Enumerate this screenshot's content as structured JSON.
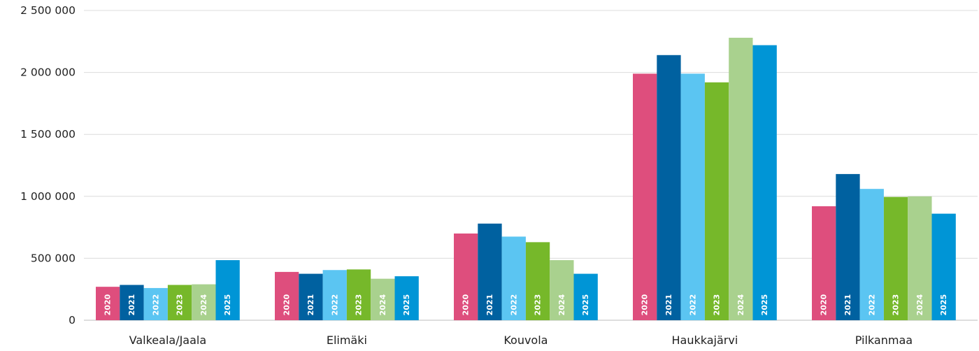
{
  "chart_data": {
    "type": "bar",
    "categories": [
      "Valkeala/Jaala",
      "Elimäki",
      "Kouvola",
      "Haukkajärvi",
      "Pilkanmaa"
    ],
    "series": [
      {
        "name": "2020",
        "color": "#de4e7d",
        "values": [
          270000,
          390000,
          700000,
          1990000,
          920000
        ]
      },
      {
        "name": "2021",
        "color": "#0061a0",
        "values": [
          285000,
          375000,
          780000,
          2140000,
          1180000
        ]
      },
      {
        "name": "2022",
        "color": "#5bc5f2",
        "values": [
          260000,
          405000,
          675000,
          1990000,
          1060000
        ]
      },
      {
        "name": "2023",
        "color": "#76b82a",
        "values": [
          285000,
          410000,
          630000,
          1920000,
          995000
        ]
      },
      {
        "name": "2024",
        "color": "#a9d18e",
        "values": [
          290000,
          335000,
          485000,
          2280000,
          1000000
        ]
      },
      {
        "name": "2025",
        "color": "#0095d6",
        "values": [
          485000,
          355000,
          375000,
          2220000,
          860000
        ]
      }
    ],
    "ylim": [
      0,
      2500000
    ],
    "yticks": [
      0,
      500000,
      1000000,
      1500000,
      2000000,
      2500000
    ],
    "ytick_labels": [
      "0",
      "500 000",
      "1 000 000",
      "1 500 000",
      "2 000 000",
      "2 500 000"
    ],
    "grid": true,
    "title": "",
    "xlabel": "",
    "ylabel": ""
  }
}
